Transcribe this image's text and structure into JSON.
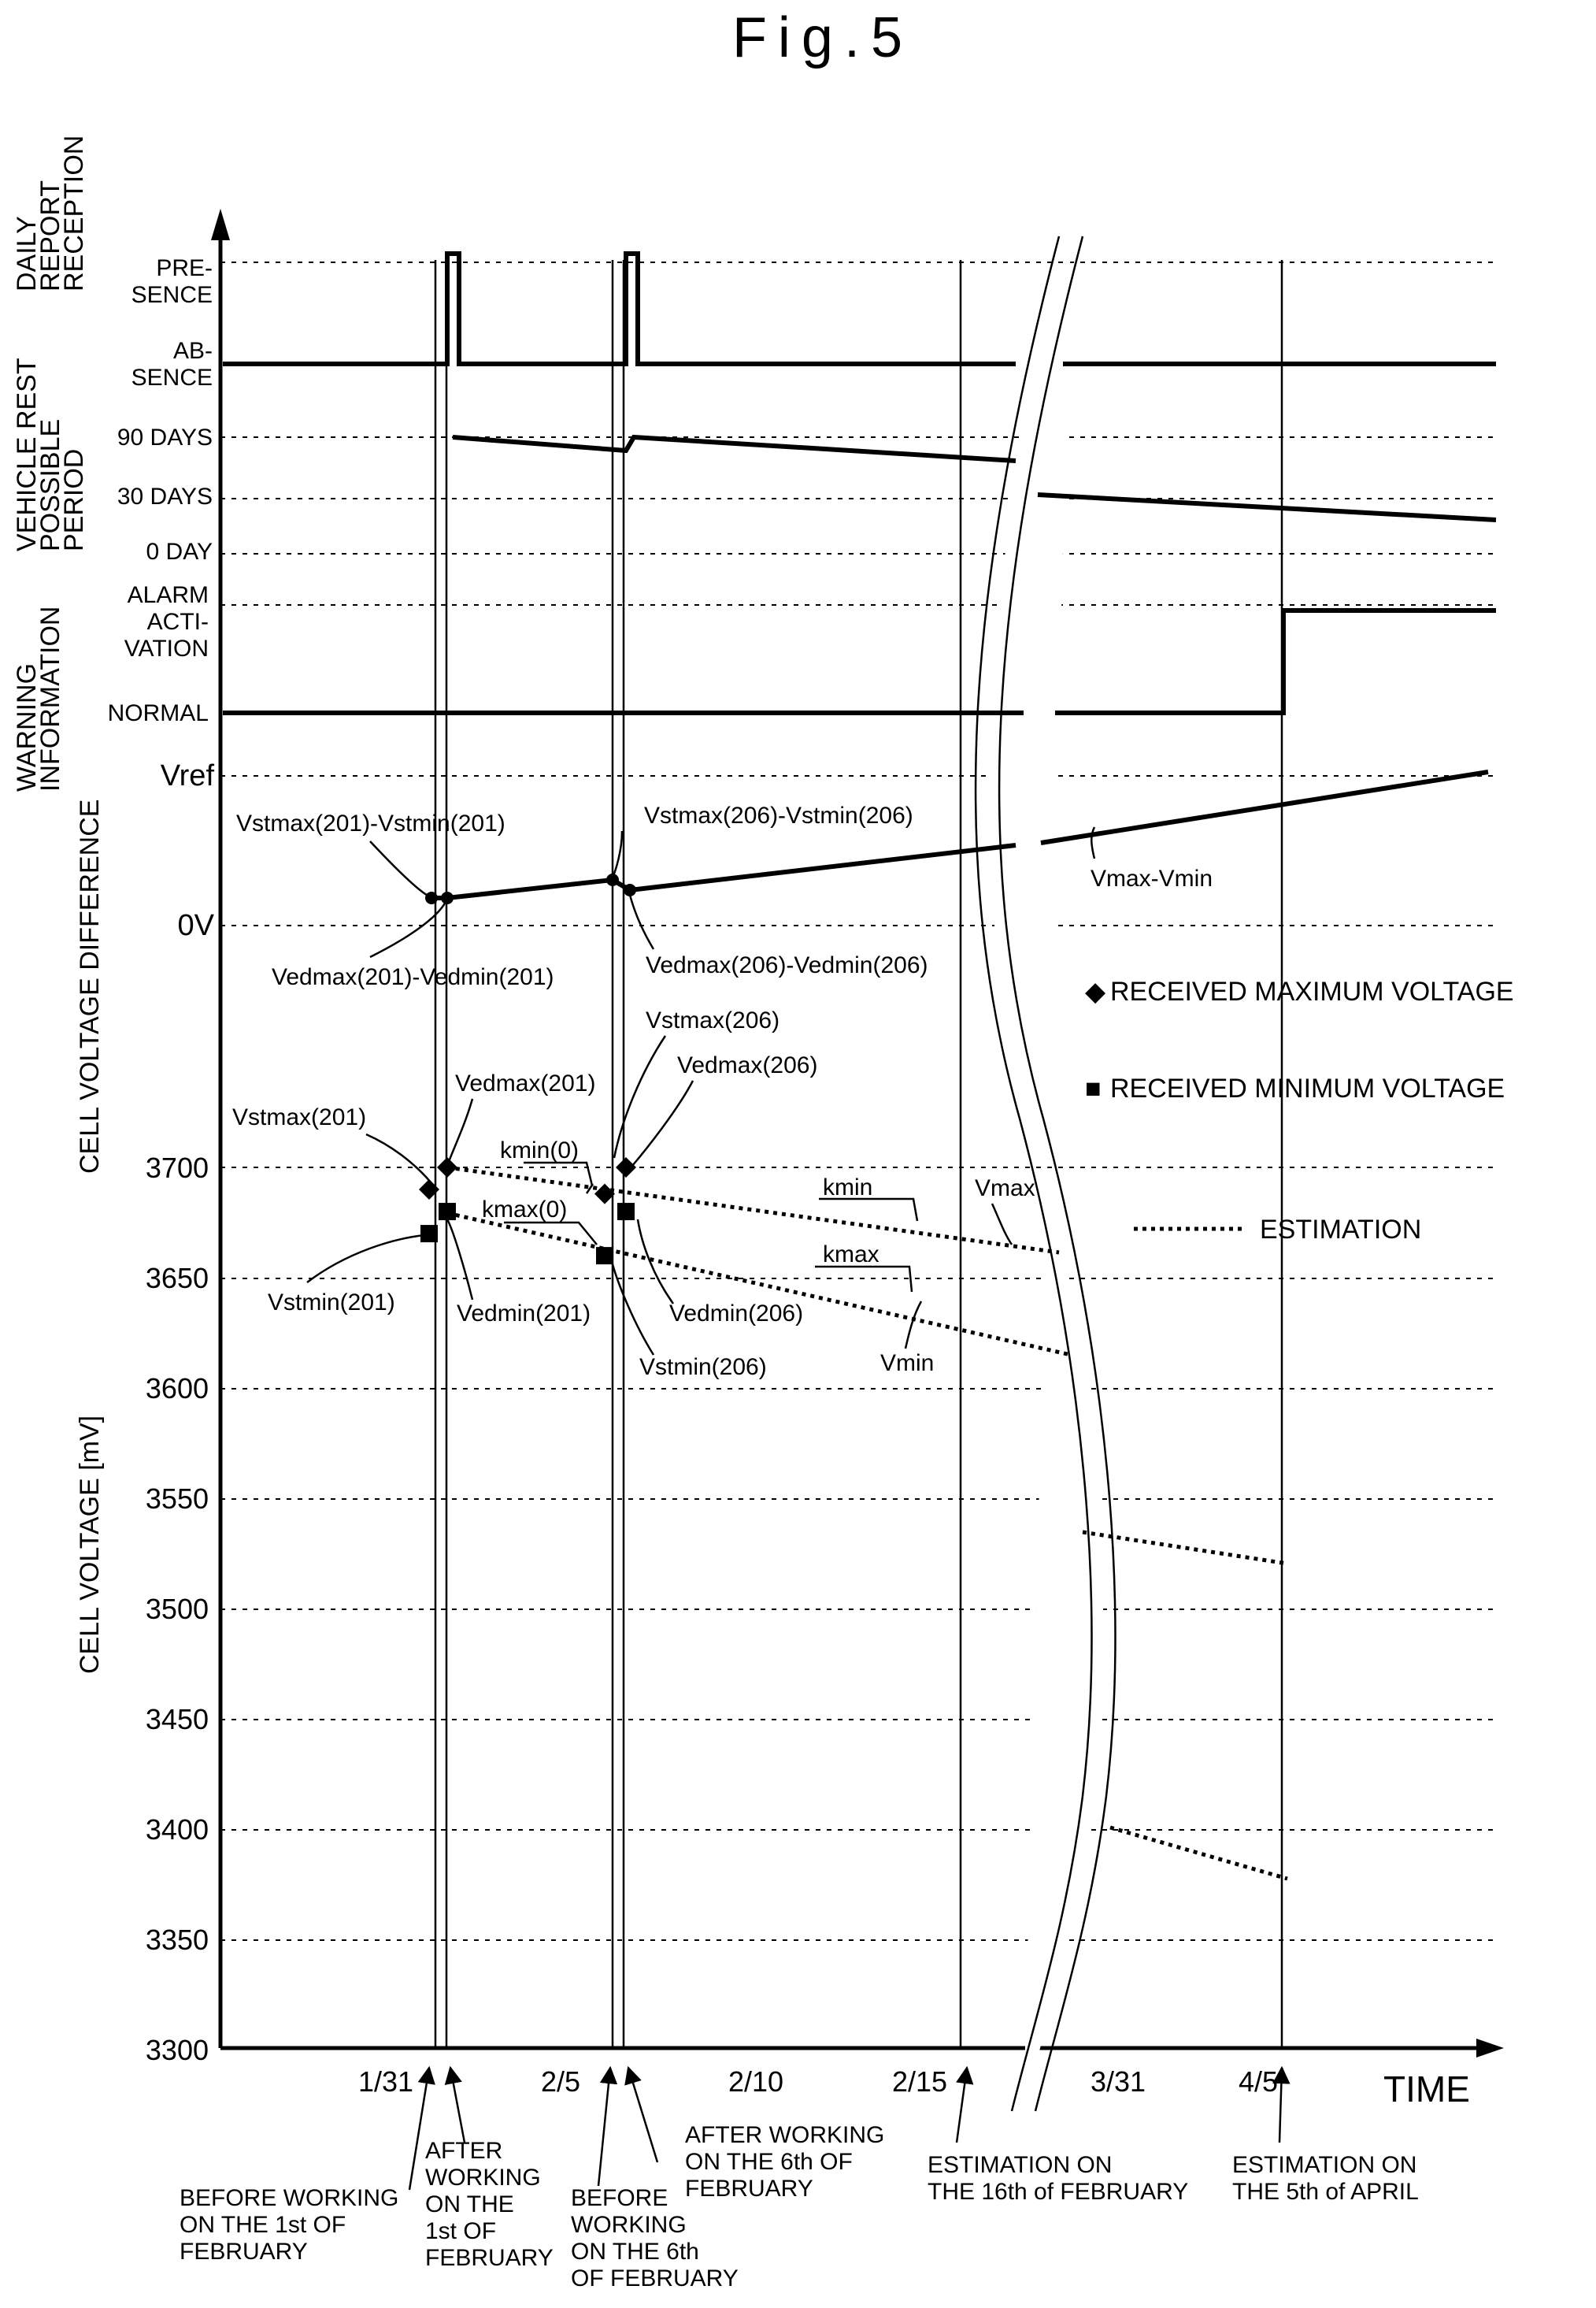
{
  "title": "Fig.5",
  "y_sections": {
    "daily_report": [
      "DAILY",
      "REPORT",
      "RECEPTION"
    ],
    "vehicle_rest": [
      "VEHICLE REST",
      "POSSIBLE",
      "PERIOD"
    ],
    "warning": [
      "WARNING",
      "INFORMATION"
    ],
    "cell_voltage_difference": "CELL VOLTAGE DIFFERENCE",
    "cell_voltage": "CELL VOLTAGE [mV]"
  },
  "levels": {
    "presence": [
      "PRE-",
      "SENCE"
    ],
    "absence": [
      "AB-",
      "SENCE"
    ],
    "days90": "90 DAYS",
    "days30": "30 DAYS",
    "day0": "0 DAY",
    "alarm": [
      "ALARM",
      "ACTI-",
      "VATION"
    ],
    "normal": "NORMAL",
    "vref": "Vref",
    "zero_v": "0V"
  },
  "voltage_ticks": [
    "3700",
    "3650",
    "3600",
    "3550",
    "3500",
    "3450",
    "3400",
    "3350",
    "3300"
  ],
  "time_ticks": [
    "1/31",
    "2/5",
    "2/10",
    "2/15",
    "3/31",
    "4/5"
  ],
  "time_label": "TIME",
  "annotations": {
    "diff201_st": "Vstmax(201)-Vstmin(201)",
    "diff206_st": "Vstmax(206)-Vstmin(206)",
    "diff201_ed": "Vedmax(201)-Vedmin(201)",
    "diff206_ed": "Vedmax(206)-Vedmin(206)",
    "vmax_vmin": "Vmax-Vmin",
    "vstmax206": "Vstmax(206)",
    "vedmax206": "Vedmax(206)",
    "vedmax201": "Vedmax(201)",
    "vstmax201": "Vstmax(201)",
    "kmin0": "kmin(0)",
    "kmax0": "kmax(0)",
    "kmin": "kmin",
    "kmax": "kmax",
    "vmax": "Vmax",
    "vmin": "Vmin",
    "vstmin201": "Vstmin(201)",
    "vedmin201": "Vedmin(201)",
    "vedmin206": "Vedmin(206)",
    "vstmin206": "Vstmin(206)"
  },
  "legend": {
    "max_marker": "◆",
    "max": "RECEIVED MAXIMUM VOLTAGE",
    "min_marker": "■",
    "min": "RECEIVED MINIMUM VOLTAGE",
    "est": "ESTIMATION"
  },
  "events": {
    "before_1st": [
      "BEFORE WORKING",
      "ON THE 1st OF",
      "FEBRUARY"
    ],
    "after_1st": [
      "AFTER",
      "WORKING",
      "ON THE",
      "1st OF",
      "FEBRUARY"
    ],
    "before_6th": [
      "BEFORE",
      "WORKING",
      "ON THE 6th",
      "OF FEBRUARY"
    ],
    "after_6th": [
      "AFTER WORKING",
      "ON THE 6th OF",
      "FEBRUARY"
    ],
    "est_16th": [
      "ESTIMATION ON",
      "THE 16th of FEBRUARY"
    ],
    "est_5th": [
      "ESTIMATION ON",
      "THE 5th of APRIL"
    ]
  },
  "chart_data": {
    "type": "line",
    "ylabel": "CELL VOLTAGE [mV]",
    "xlabel": "TIME",
    "ylim": [
      3300,
      3700
    ],
    "x_ticks": [
      "1/31",
      "2/5",
      "2/10",
      "2/15",
      "3/31",
      "4/5"
    ],
    "series": [
      {
        "name": "Vmax",
        "points": [
          {
            "label": "Vstmax(201)",
            "value": 3690
          },
          {
            "label": "Vedmax(201)",
            "value": 3700
          },
          {
            "label": "Vstmax(206)",
            "value": 3688
          },
          {
            "label": "Vedmax(206)",
            "value": 3700
          }
        ]
      },
      {
        "name": "Vmin",
        "points": [
          {
            "label": "Vstmin(201)",
            "value": 3670
          },
          {
            "label": "Vedmin(201)",
            "value": 3680
          },
          {
            "label": "Vstmin(206)",
            "value": 3660
          },
          {
            "label": "Vedmin(206)",
            "value": 3680
          }
        ]
      }
    ]
  }
}
